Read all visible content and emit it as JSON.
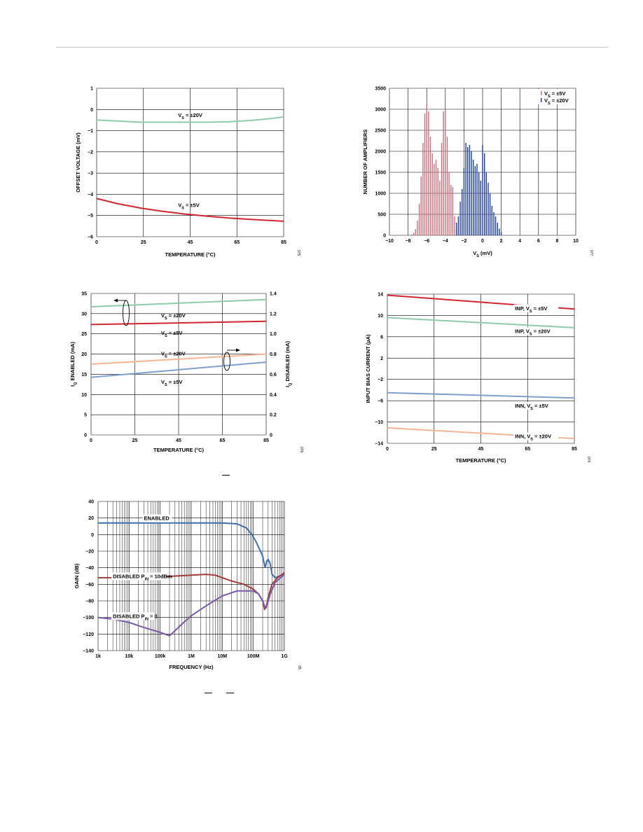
{
  "colors": {
    "green": "#8fcbaa",
    "red": "#d0262f",
    "peach": "#f6b693",
    "blue": "#7f9fcf",
    "hist_red": "#c9707c",
    "hist_blue": "#1f3fa0",
    "enabled": "#3d6fb0",
    "disabled10": "#a63838",
    "disabled0": "#7a5aa8",
    "grid": "#000000"
  },
  "chart_data": [
    {
      "type": "line",
      "xlabel": "TEMPERATURE (°C)",
      "ylabel": "OFFSET VOLTAGE (mV)",
      "xlim": [
        0,
        85
      ],
      "ylim": [
        -6,
        1
      ],
      "xticks": [
        "0",
        "25",
        "45",
        "65",
        "85"
      ],
      "yticks": [
        "1",
        "0",
        "−1",
        "−2",
        "−3",
        "−4",
        "−5",
        "−6"
      ],
      "series": [
        {
          "name": "VS = ±20V",
          "color": "green",
          "x": [
            0,
            10,
            20,
            30,
            40,
            50,
            60,
            70,
            80,
            85
          ],
          "y": [
            -0.5,
            -0.55,
            -0.6,
            -0.6,
            -0.6,
            -0.6,
            -0.58,
            -0.52,
            -0.42,
            -0.35
          ]
        },
        {
          "name": "VS = ±5V",
          "color": "red",
          "x": [
            0,
            10,
            20,
            30,
            40,
            50,
            60,
            70,
            80,
            85
          ],
          "y": [
            -4.2,
            -4.45,
            -4.65,
            -4.8,
            -4.93,
            -5.03,
            -5.12,
            -5.18,
            -5.24,
            -5.27
          ]
        }
      ],
      "annotations": [
        {
          "text": "VS = ±20V",
          "main": "V",
          "sub": "S",
          "rest": " = ±20V",
          "x": 37,
          "y": -0.25
        },
        {
          "text": "VS = ±5V",
          "main": "V",
          "sub": "S",
          "rest": " = ±5V",
          "x": 37,
          "y": -4.5
        }
      ],
      "fig_id": "075"
    },
    {
      "type": "bar",
      "xlabel": "VS (mV)",
      "ylabel": "NUMBER OF AMPLIFIERS",
      "xlim": [
        -10,
        10
      ],
      "ylim": [
        0,
        3500
      ],
      "xticks": [
        "−10",
        "−8",
        "−6",
        "−4",
        "−2",
        "0",
        "2",
        "4",
        "6",
        "8",
        "10"
      ],
      "yticks": [
        "3500",
        "3000",
        "2500",
        "2000",
        "1500",
        "1000",
        "500",
        "0"
      ],
      "legend": "top-right",
      "series": [
        {
          "name": "VS = ±5V",
          "color": "hist_red",
          "x": [
            -7.6,
            -7.4,
            -7.2,
            -7.0,
            -6.8,
            -6.6,
            -6.4,
            -6.2,
            -6.0,
            -5.8,
            -5.6,
            -5.4,
            -5.2,
            -5.0,
            -4.8,
            -4.6,
            -4.4,
            -4.2,
            -4.0,
            -3.8,
            -3.6,
            -3.4,
            -3.2,
            -3.0
          ],
          "values": [
            20,
            60,
            150,
            350,
            750,
            1400,
            2200,
            2900,
            3100,
            2950,
            2350,
            1950,
            1700,
            1800,
            1600,
            1300,
            2200,
            2950,
            3000,
            2350,
            1500,
            1200,
            1150,
            450
          ]
        },
        {
          "name": "VS = ±20V",
          "color": "hist_blue",
          "x": [
            -2.8,
            -2.6,
            -2.4,
            -2.2,
            -2.0,
            -1.8,
            -1.6,
            -1.4,
            -1.2,
            -1.0,
            -0.8,
            -0.6,
            -0.4,
            -0.2,
            0.0,
            0.2,
            0.4,
            0.6,
            0.8,
            1.0,
            1.2,
            1.4,
            1.6,
            1.8,
            2.0
          ],
          "values": [
            300,
            450,
            800,
            1100,
            1600,
            2200,
            2100,
            2150,
            2000,
            1800,
            1650,
            1700,
            1500,
            1300,
            2150,
            1950,
            1500,
            1250,
            1000,
            700,
            550,
            450,
            300,
            160,
            80
          ]
        }
      ],
      "legend_items": [
        {
          "main": "V",
          "sub": "S",
          "rest": " = ±5V",
          "color": "hist_red"
        },
        {
          "main": "V",
          "sub": "S",
          "rest": " = ±20V",
          "color": "hist_blue"
        }
      ],
      "fig_id": "077"
    },
    {
      "type": "line",
      "xlabel": "TEMPERATURE (°C)",
      "ylabel": "IQ ENABLED (mA)",
      "y2label": "IQ DISABLED (mA)",
      "xlim": [
        0,
        85
      ],
      "ylim": [
        0,
        35
      ],
      "y2lim": [
        0,
        1.4
      ],
      "xticks": [
        "0",
        "25",
        "45",
        "65",
        "85"
      ],
      "yticks": [
        "35",
        "30",
        "25",
        "20",
        "15",
        "10",
        "5",
        "0"
      ],
      "y2ticks": [
        "1.4",
        "1.2",
        "1.0",
        "0.8",
        "0.6",
        "0.4",
        "0.2",
        "0"
      ],
      "series": [
        {
          "name": "VS = ±20V (enabled)",
          "color": "green",
          "axis": "left",
          "x": [
            0,
            85
          ],
          "y": [
            31.7,
            33.5
          ]
        },
        {
          "name": "VS = ±5V (enabled)",
          "color": "red",
          "axis": "left",
          "x": [
            0,
            85
          ],
          "y": [
            27.3,
            28.1
          ]
        },
        {
          "name": "VS = ±20V (disabled)",
          "color": "peach",
          "axis": "right",
          "x": [
            0,
            85
          ],
          "y": [
            0.7,
            0.8
          ]
        },
        {
          "name": "VS = ±5V (disabled)",
          "color": "blue",
          "axis": "right",
          "x": [
            0,
            85
          ],
          "y": [
            0.57,
            0.72
          ]
        }
      ],
      "annotations": [
        {
          "main": "V",
          "sub": "S",
          "rest": " = ±20V",
          "x": 34,
          "y": 29.6
        },
        {
          "main": "V",
          "sub": "S",
          "rest": " = ±5V",
          "x": 34,
          "y": 25.3
        },
        {
          "main": "V",
          "sub": "S",
          "rest": " = ±20V",
          "x": 34,
          "y": 20.2
        },
        {
          "main": "V",
          "sub": "S",
          "rest": " = ±5V",
          "x": 34,
          "y": 13.2
        }
      ],
      "fig_id": "076"
    },
    {
      "type": "line",
      "xlabel": "TEMPERATURE (°C)",
      "ylabel": "INPUT BIAS CURRENT (µA)",
      "xlim": [
        0,
        85
      ],
      "ylim": [
        -14,
        14
      ],
      "xticks": [
        "0",
        "25",
        "45",
        "65",
        "85"
      ],
      "yticks": [
        "14",
        "10",
        "6",
        "2",
        "−2",
        "−6",
        "−10",
        "−14"
      ],
      "series": [
        {
          "name": "INP, VS = ±5V",
          "color": "red",
          "x": [
            0,
            85
          ],
          "y": [
            13.8,
            11.2
          ]
        },
        {
          "name": "INP, VS = ±20V",
          "color": "green",
          "x": [
            0,
            85
          ],
          "y": [
            9.6,
            7.7
          ]
        },
        {
          "name": "INN, VS = ±5V",
          "color": "blue",
          "x": [
            0,
            85
          ],
          "y": [
            -4.5,
            -5.5
          ]
        },
        {
          "name": "INN, VS = ±20V",
          "color": "peach",
          "x": [
            0,
            85
          ],
          "y": [
            -11.1,
            -13.1
          ]
        }
      ],
      "annotations": [
        {
          "pre": "INP, ",
          "main": "V",
          "sub": "S",
          "rest": " = ±5V",
          "x": 58,
          "y": 11.4
        },
        {
          "pre": "INP, ",
          "main": "V",
          "sub": "S",
          "rest": " = ±20V",
          "x": 58,
          "y": 7.1
        },
        {
          "pre": "INN, ",
          "main": "V",
          "sub": "S",
          "rest": " = ±5V",
          "x": 58,
          "y": -6.9
        },
        {
          "pre": "INN, ",
          "main": "V",
          "sub": "S",
          "rest": " = ±20V",
          "x": 58,
          "y": -12.6
        }
      ],
      "fig_id": "074"
    },
    {
      "type": "line",
      "xlabel": "FREQUENCY (Hz)",
      "ylabel": "GAIN (dB)",
      "xscale": "log",
      "xlim": [
        1000,
        1000000000
      ],
      "ylim": [
        -140,
        40
      ],
      "xticks": [
        "1k",
        "10k",
        "100k",
        "1M",
        "10M",
        "100M",
        "1G"
      ],
      "yticks": [
        "40",
        "20",
        "0",
        "−20",
        "−40",
        "−60",
        "−80",
        "−100",
        "−120",
        "−140"
      ],
      "series": [
        {
          "name": "ENABLED",
          "color": "enabled",
          "x": [
            1000,
            10000,
            100000,
            1000000,
            10000000,
            30000000,
            60000000,
            90000000,
            120000000,
            160000000,
            200000000,
            240000000,
            270000000,
            300000000,
            350000000,
            400000000,
            500000000,
            700000000,
            1000000000
          ],
          "y": [
            14,
            14,
            14,
            14,
            14,
            13,
            8,
            0,
            -8,
            -18,
            -26,
            -40,
            -32,
            -30,
            -35,
            -48,
            -52,
            -50,
            -47
          ]
        },
        {
          "name": "DISABLED PIN = 10dBm",
          "color": "disabled10",
          "x": [
            1000,
            10000,
            100000,
            1000000,
            3000000,
            6000000,
            10000000,
            20000000,
            50000000,
            100000000,
            150000000,
            200000000,
            230000000,
            260000000,
            300000000,
            400000000,
            600000000,
            1000000000
          ],
          "y": [
            -52,
            -52,
            -51,
            -49,
            -48,
            -49,
            -52,
            -56,
            -60,
            -66,
            -72,
            -80,
            -90,
            -88,
            -76,
            -60,
            -52,
            -46
          ]
        },
        {
          "name": "DISABLED PIN = 0",
          "color": "disabled0",
          "x": [
            1000,
            3000,
            10000,
            30000,
            100000,
            200000,
            300000,
            500000,
            1000000,
            3000000,
            10000000,
            30000000,
            100000000,
            150000000,
            200000000,
            240000000,
            280000000,
            350000000,
            500000000,
            1000000000
          ],
          "y": [
            -100,
            -102,
            -106,
            -112,
            -118,
            -122,
            -116,
            -108,
            -98,
            -86,
            -74,
            -68,
            -68,
            -72,
            -80,
            -88,
            -84,
            -72,
            -58,
            -48
          ]
        }
      ],
      "annotations": [
        {
          "main": "ENABLED",
          "x": 30000,
          "y": 20
        },
        {
          "main": "DISABLED P",
          "sub": "IN",
          "rest": " = 10dBm",
          "x": 3000,
          "y": -50
        },
        {
          "main": "DISABLED P",
          "sub": "IN",
          "rest": " = 0",
          "x": 3000,
          "y": -98
        }
      ],
      "fig_id": "05"
    }
  ]
}
